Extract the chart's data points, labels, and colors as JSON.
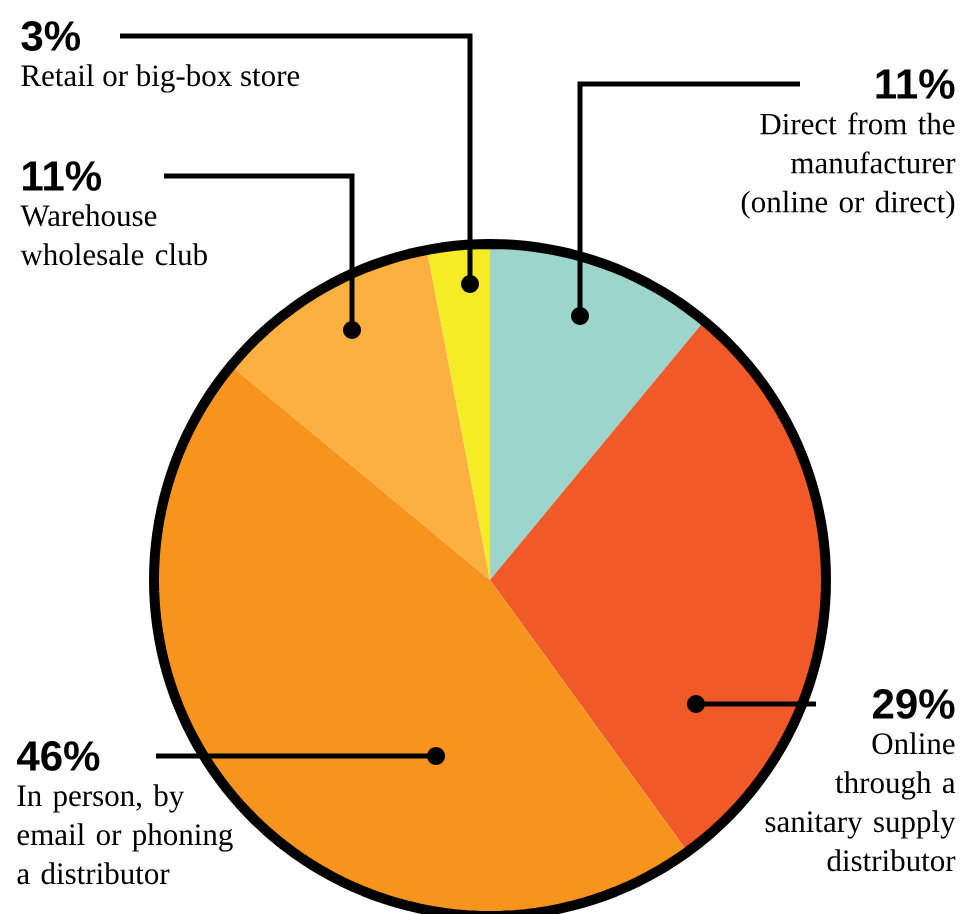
{
  "chart_data": {
    "type": "pie",
    "categories": [
      "Direct from the manufacturer (online or direct)",
      "Online through a sanitary supply distributor",
      "In person, by email or phoning a distributor",
      "Warehouse wholesale club",
      "Retail or big-box store"
    ],
    "values": [
      11,
      29,
      46,
      11,
      3
    ],
    "value_labels": [
      "11%",
      "29%",
      "46%",
      "11%",
      "3%"
    ],
    "colors": [
      "#9dd5cc",
      "#f05a28",
      "#f7941d",
      "#fbb040",
      "#f5eb26"
    ]
  }
}
